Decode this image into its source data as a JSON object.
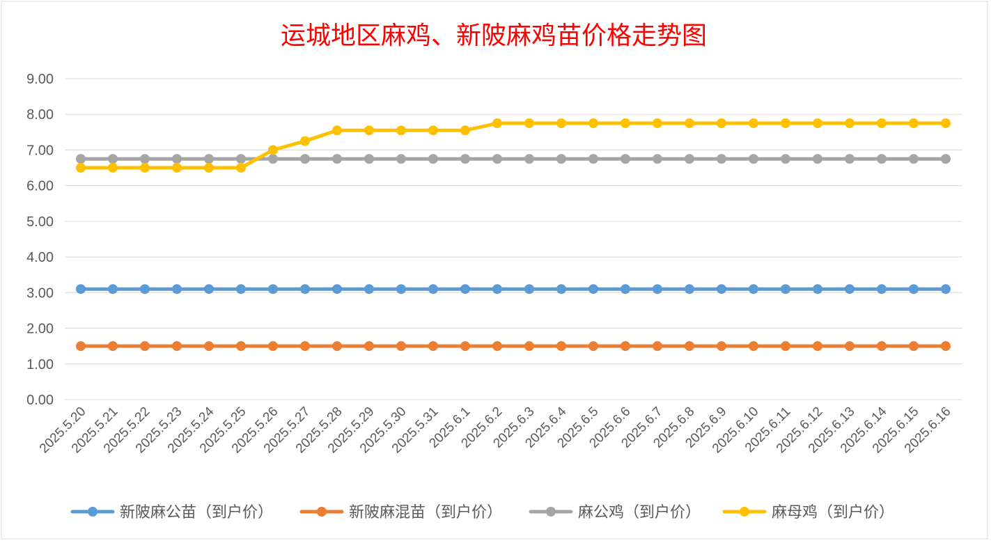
{
  "chart_data": {
    "type": "line",
    "title": "运城地区麻鸡、新陂麻鸡苗价格走势图",
    "xlabel": "",
    "ylabel": "",
    "ylim": [
      0,
      9
    ],
    "y_ticks": [
      "0.00",
      "1.00",
      "2.00",
      "3.00",
      "4.00",
      "5.00",
      "6.00",
      "7.00",
      "8.00",
      "9.00"
    ],
    "grid": true,
    "legend_position": "bottom",
    "categories": [
      "2025.5.20",
      "2025.5.21",
      "2025.5.22",
      "2025.5.23",
      "2025.5.24",
      "2025.5.25",
      "2025.5.26",
      "2025.5.27",
      "2025.5.28",
      "2025.5.29",
      "2025.5.30",
      "2025.5.31",
      "2025.6.1",
      "2025.6.2",
      "2025.6.3",
      "2025.6.4",
      "2025.6.5",
      "2025.6.6",
      "2025.6.7",
      "2025.6.8",
      "2025.6.9",
      "2025.6.10",
      "2025.6.11",
      "2025.6.12",
      "2025.6.13",
      "2025.6.14",
      "2025.6.15",
      "2025.6.16"
    ],
    "series": [
      {
        "name": "新陂麻公苗（到户价）",
        "color": "#5b9bd5",
        "values": [
          3.1,
          3.1,
          3.1,
          3.1,
          3.1,
          3.1,
          3.1,
          3.1,
          3.1,
          3.1,
          3.1,
          3.1,
          3.1,
          3.1,
          3.1,
          3.1,
          3.1,
          3.1,
          3.1,
          3.1,
          3.1,
          3.1,
          3.1,
          3.1,
          3.1,
          3.1,
          3.1,
          3.1
        ]
      },
      {
        "name": "新陂麻混苗（到户价）",
        "color": "#ed7d31",
        "values": [
          1.5,
          1.5,
          1.5,
          1.5,
          1.5,
          1.5,
          1.5,
          1.5,
          1.5,
          1.5,
          1.5,
          1.5,
          1.5,
          1.5,
          1.5,
          1.5,
          1.5,
          1.5,
          1.5,
          1.5,
          1.5,
          1.5,
          1.5,
          1.5,
          1.5,
          1.5,
          1.5,
          1.5
        ]
      },
      {
        "name": "麻公鸡（到户价）",
        "color": "#a5a5a5",
        "values": [
          6.75,
          6.75,
          6.75,
          6.75,
          6.75,
          6.75,
          6.75,
          6.75,
          6.75,
          6.75,
          6.75,
          6.75,
          6.75,
          6.75,
          6.75,
          6.75,
          6.75,
          6.75,
          6.75,
          6.75,
          6.75,
          6.75,
          6.75,
          6.75,
          6.75,
          6.75,
          6.75,
          6.75
        ]
      },
      {
        "name": "麻母鸡（到户价）",
        "color": "#ffc000",
        "values": [
          6.5,
          6.5,
          6.5,
          6.5,
          6.5,
          6.5,
          7.0,
          7.25,
          7.55,
          7.55,
          7.55,
          7.55,
          7.55,
          7.75,
          7.75,
          7.75,
          7.75,
          7.75,
          7.75,
          7.75,
          7.75,
          7.75,
          7.75,
          7.75,
          7.75,
          7.75,
          7.75,
          7.75
        ]
      }
    ]
  }
}
